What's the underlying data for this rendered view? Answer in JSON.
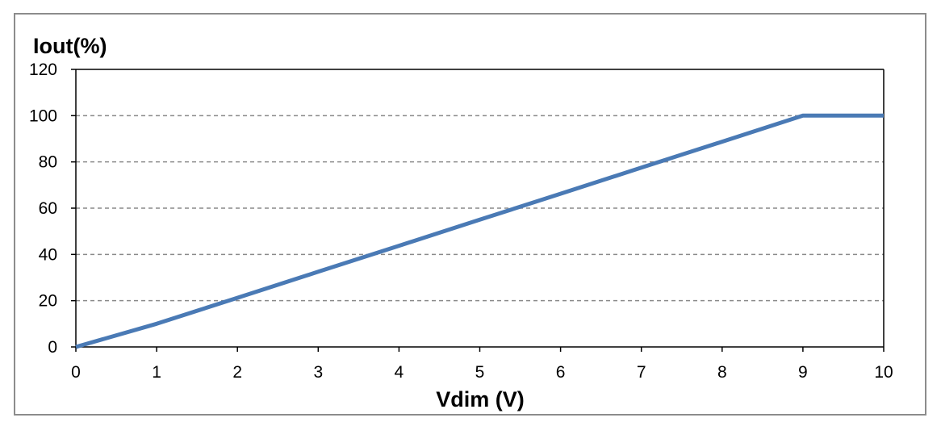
{
  "chart_data": {
    "type": "line",
    "title": "",
    "xlabel": "Vdim (V)",
    "ylabel": "Iout(%)",
    "xlim": [
      0,
      10
    ],
    "ylim": [
      0,
      120
    ],
    "x_ticks": [
      0,
      1,
      2,
      3,
      4,
      5,
      6,
      7,
      8,
      9,
      10
    ],
    "y_ticks": [
      0,
      20,
      40,
      60,
      80,
      100,
      120
    ],
    "grid": "horizontal-dashed",
    "legend": "none",
    "series": [
      {
        "color": "#4a7ab5",
        "x": [
          0,
          1,
          2,
          3,
          4,
          5,
          6,
          7,
          8,
          9,
          10
        ],
        "y": [
          0,
          10,
          21.25,
          32.5,
          43.75,
          55,
          66.25,
          77.5,
          88.75,
          100,
          100
        ]
      }
    ]
  }
}
